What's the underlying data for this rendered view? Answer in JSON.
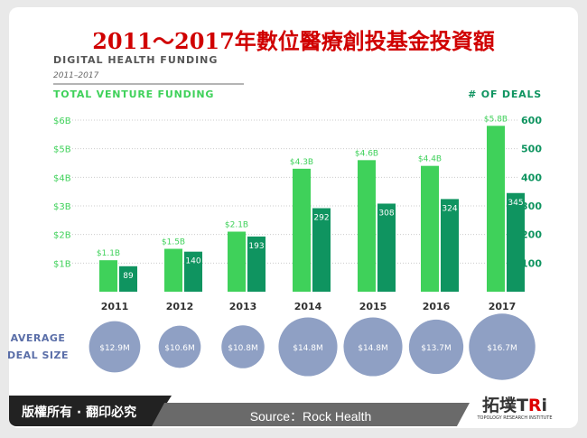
{
  "title": "2011～2017年數位醫療創投基金投資額",
  "footer": {
    "copyright": "版權所有 · 翻印必究",
    "source": "Source：Rock Health",
    "logo_text": "拓墣TRi",
    "logo_sub": "TOPOLOGY RESEARCH INSTITUTE"
  },
  "chart_data": {
    "type": "bar",
    "title": "DIGITAL HEALTH FUNDING",
    "subtitle": "2011–2017",
    "ylabel": "TOTAL VENTURE FUNDING",
    "y2label": "# OF DEALS",
    "categories": [
      "2011",
      "2012",
      "2013",
      "2014",
      "2015",
      "2016",
      "2017"
    ],
    "ylim": [
      0,
      6
    ],
    "y2lim": [
      0,
      600
    ],
    "yticks": [
      "$1B",
      "$2B",
      "$3B",
      "$4B",
      "$5B",
      "$6B"
    ],
    "y2ticks": [
      "100",
      "200",
      "300",
      "400",
      "500",
      "600"
    ],
    "series": [
      {
        "name": "Total Venture Funding ($B)",
        "values": [
          1.1,
          1.5,
          2.1,
          4.3,
          4.6,
          4.4,
          5.8
        ],
        "labels": [
          "$1.1B",
          "$1.5B",
          "$2.1B",
          "$4.3B",
          "$4.6B",
          "$4.4B",
          "$5.8B"
        ],
        "color": "#3fd15a"
      },
      {
        "name": "# of Deals",
        "values": [
          89,
          140,
          193,
          292,
          308,
          324,
          345
        ],
        "labels": [
          "89",
          "140",
          "193",
          "292",
          "308",
          "324",
          "345"
        ],
        "color": "#0f9460"
      }
    ],
    "avg_deal_size": {
      "label_line1": "AVERAGE",
      "label_line2": "DEAL SIZE",
      "values": [
        12.9,
        10.6,
        10.8,
        14.8,
        14.8,
        13.7,
        16.7
      ],
      "labels": [
        "$12.9M",
        "$10.6M",
        "$10.8M",
        "$14.8M",
        "$14.8M",
        "$13.7M",
        "$16.7M"
      ],
      "color": "#8fa0c4"
    },
    "grid": true
  }
}
